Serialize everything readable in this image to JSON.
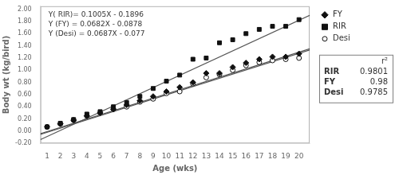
{
  "chart_data": {
    "type": "scatter",
    "xlabel": "Age (wks)",
    "ylabel": "Body wt (kg/bird)",
    "x": [
      1,
      2,
      3,
      4,
      5,
      6,
      7,
      8,
      9,
      10,
      11,
      12,
      13,
      14,
      15,
      16,
      17,
      18,
      19,
      20
    ],
    "xlim": [
      0.5,
      20.8
    ],
    "ylim": [
      -0.2,
      2.05
    ],
    "xticks": [
      1,
      2,
      3,
      4,
      5,
      6,
      7,
      8,
      9,
      10,
      11,
      12,
      13,
      14,
      15,
      16,
      17,
      18,
      19,
      20
    ],
    "yticks": [
      {
        "value": -0.2,
        "label": "-0.20"
      },
      {
        "value": 0,
        "label": "0.00"
      },
      {
        "value": 0.2,
        "label": "0.20"
      },
      {
        "value": 0.4,
        "label": "0.40"
      },
      {
        "value": 0.6,
        "label": "0.60"
      },
      {
        "value": 0.8,
        "label": "0.80"
      },
      {
        "value": 1,
        "label": "1.00"
      },
      {
        "value": 1.2,
        "label": "1.20"
      },
      {
        "value": 1.4,
        "label": "1.40"
      },
      {
        "value": 1.6,
        "label": "1.60"
      },
      {
        "value": 1.8,
        "label": "1.80"
      },
      {
        "value": 2,
        "label": "2.00"
      }
    ],
    "grid": false,
    "legend": "upper right",
    "series": [
      {
        "name": "FY",
        "marker": "diamond",
        "color": "#111111",
        "values": [
          0.07,
          0.12,
          0.18,
          0.25,
          0.3,
          0.36,
          0.43,
          0.5,
          0.57,
          0.65,
          0.72,
          0.8,
          0.95,
          0.95,
          1.05,
          1.12,
          1.18,
          1.22,
          1.22,
          1.27
        ]
      },
      {
        "name": "RIR",
        "marker": "square",
        "color": "#111111",
        "values": [
          0.07,
          0.13,
          0.19,
          0.28,
          0.32,
          0.4,
          0.47,
          0.57,
          0.7,
          0.82,
          0.92,
          1.18,
          1.2,
          1.45,
          1.5,
          1.6,
          1.67,
          1.72,
          1.72,
          1.83
        ]
      },
      {
        "name": "Desi",
        "marker": "open_circle",
        "color": "#111111",
        "values": [
          0.07,
          0.12,
          0.18,
          0.25,
          0.3,
          0.36,
          0.4,
          0.48,
          0.53,
          0.62,
          0.65,
          0.78,
          0.88,
          0.93,
          1.0,
          1.08,
          1.13,
          1.16,
          1.18,
          1.2
        ]
      },
      {
        "type": "line",
        "color": "#555555",
        "x": [
          0.5,
          20.8
        ],
        "values": [
          -0.13935,
          1.9008
        ]
      },
      {
        "type": "line",
        "color": "#555555",
        "x": [
          0.5,
          20.8
        ],
        "values": [
          -0.0537,
          1.33076
        ]
      },
      {
        "type": "line",
        "color": "#555555",
        "x": [
          0.5,
          20.8
        ],
        "values": [
          -0.04265,
          1.35196
        ]
      }
    ],
    "annotations": [
      "Y( RIR)= 0.1005X - 0.1896",
      "Y (FY) = 0.0682X - 0.0878",
      "Y (Desi) = 0.0687X - 0.077"
    ],
    "table": {
      "header": "r²",
      "rows": [
        {
          "label": "RIR",
          "value": 0.9801
        },
        {
          "label": "FY",
          "value": 0.98
        },
        {
          "label": "Desi",
          "value": 0.9785
        }
      ]
    }
  }
}
